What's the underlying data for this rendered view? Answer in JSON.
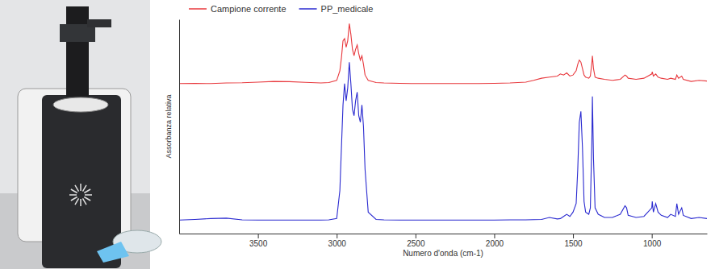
{
  "chart_data": {
    "type": "line",
    "x_label": "Numero d'onda (cm-1)",
    "y_label": "Assorbanza relativa",
    "legend": "top-left",
    "tick_labels": "x",
    "grid": false,
    "xlim": [
      4000,
      650
    ],
    "xticks": [
      3500,
      3000,
      2500,
      2000,
      1500,
      1000
    ],
    "ylim": [
      0,
      1
    ],
    "yticks": [],
    "x": [
      4000,
      3900,
      3800,
      3700,
      3600,
      3500,
      3400,
      3300,
      3200,
      3100,
      3050,
      3000,
      2980,
      2970,
      2960,
      2950,
      2940,
      2930,
      2920,
      2910,
      2900,
      2890,
      2880,
      2870,
      2860,
      2850,
      2840,
      2830,
      2820,
      2800,
      2750,
      2700,
      2600,
      2500,
      2400,
      2300,
      2200,
      2100,
      2000,
      1900,
      1800,
      1750,
      1700,
      1650,
      1600,
      1580,
      1560,
      1540,
      1520,
      1500,
      1480,
      1470,
      1460,
      1450,
      1440,
      1430,
      1420,
      1400,
      1390,
      1380,
      1377,
      1370,
      1360,
      1340,
      1300,
      1250,
      1200,
      1170,
      1160,
      1150,
      1100,
      1050,
      1000,
      997,
      990,
      975,
      960,
      940,
      900,
      880,
      850,
      841,
      830,
      810,
      800,
      750,
      700,
      650
    ],
    "series": [
      {
        "name": "Campione corrente",
        "color": "#e8383d",
        "line_style": "solid",
        "values": [
          0.7,
          0.701,
          0.7,
          0.703,
          0.704,
          0.707,
          0.71,
          0.709,
          0.706,
          0.703,
          0.705,
          0.715,
          0.76,
          0.82,
          0.9,
          0.91,
          0.87,
          0.9,
          0.98,
          0.93,
          0.86,
          0.83,
          0.86,
          0.88,
          0.84,
          0.81,
          0.83,
          0.79,
          0.74,
          0.715,
          0.705,
          0.703,
          0.701,
          0.7,
          0.7,
          0.7,
          0.7,
          0.7,
          0.701,
          0.703,
          0.707,
          0.715,
          0.725,
          0.73,
          0.735,
          0.745,
          0.74,
          0.75,
          0.735,
          0.74,
          0.76,
          0.79,
          0.81,
          0.8,
          0.77,
          0.74,
          0.73,
          0.725,
          0.735,
          0.8,
          0.83,
          0.77,
          0.73,
          0.725,
          0.72,
          0.715,
          0.72,
          0.74,
          0.735,
          0.725,
          0.72,
          0.725,
          0.745,
          0.755,
          0.735,
          0.745,
          0.73,
          0.725,
          0.72,
          0.725,
          0.72,
          0.74,
          0.725,
          0.735,
          0.72,
          0.71,
          0.715,
          0.712
        ]
      },
      {
        "name": "PP_medicale",
        "color": "#2a2ad0",
        "line_style": "solid",
        "values": [
          0.063,
          0.066,
          0.07,
          0.072,
          0.064,
          0.063,
          0.063,
          0.063,
          0.063,
          0.063,
          0.064,
          0.07,
          0.2,
          0.4,
          0.6,
          0.7,
          0.62,
          0.68,
          0.8,
          0.7,
          0.58,
          0.55,
          0.62,
          0.66,
          0.55,
          0.52,
          0.6,
          0.5,
          0.3,
          0.1,
          0.066,
          0.064,
          0.063,
          0.063,
          0.063,
          0.063,
          0.063,
          0.063,
          0.063,
          0.064,
          0.064,
          0.065,
          0.066,
          0.075,
          0.068,
          0.07,
          0.08,
          0.09,
          0.08,
          0.1,
          0.14,
          0.3,
          0.52,
          0.57,
          0.4,
          0.15,
          0.1,
          0.09,
          0.12,
          0.45,
          0.64,
          0.35,
          0.12,
          0.09,
          0.075,
          0.075,
          0.09,
          0.13,
          0.12,
          0.085,
          0.075,
          0.08,
          0.12,
          0.15,
          0.1,
          0.14,
          0.1,
          0.085,
          0.075,
          0.09,
          0.08,
          0.14,
          0.09,
          0.12,
          0.085,
          0.07,
          0.075,
          0.07
        ]
      }
    ]
  }
}
